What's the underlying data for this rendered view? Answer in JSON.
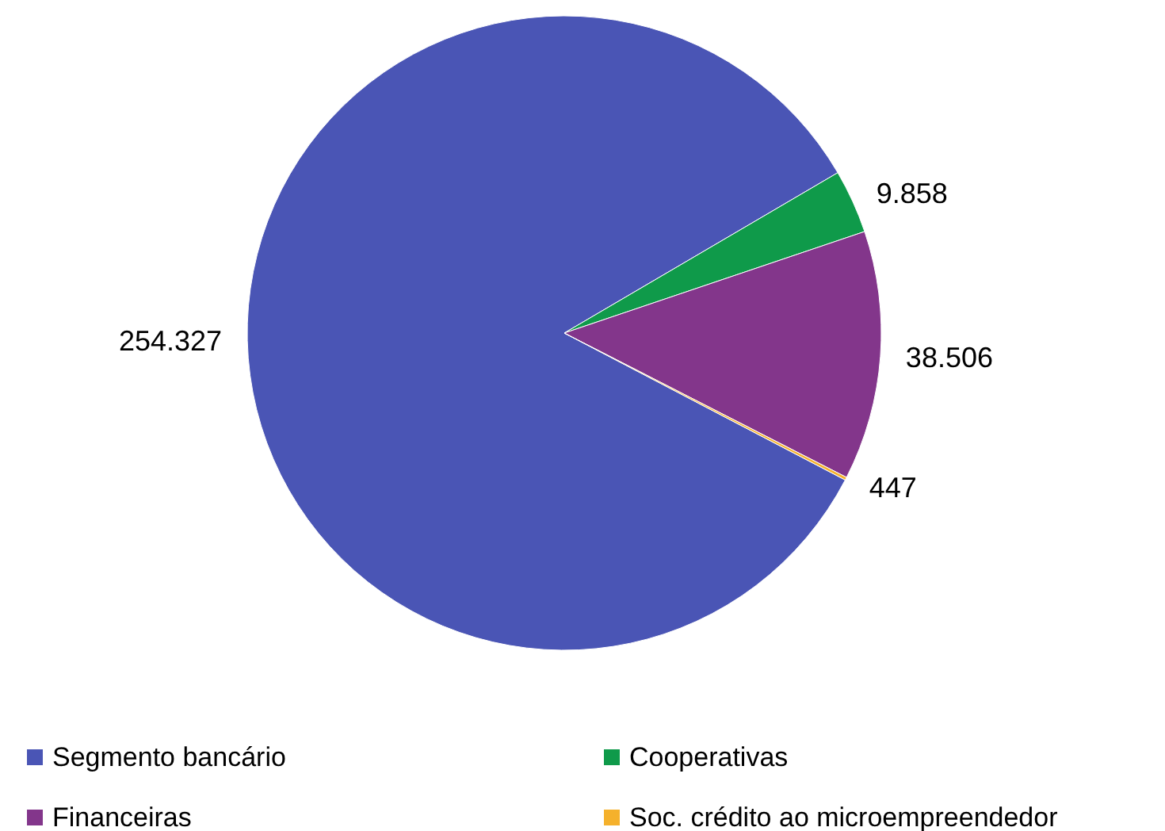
{
  "chart_data": {
    "type": "pie",
    "categories": [
      "Segmento bancário",
      "Cooperativas",
      "Financeiras",
      "Soc. crédito ao microempreendedor"
    ],
    "values": [
      254327,
      9858,
      38506,
      447
    ],
    "value_labels": [
      "254.327",
      "9.858",
      "38.506",
      "447"
    ],
    "colors": [
      "#4a55b5",
      "#0f9a4a",
      "#83368b",
      "#f5b12c"
    ],
    "legend": "bottom"
  }
}
